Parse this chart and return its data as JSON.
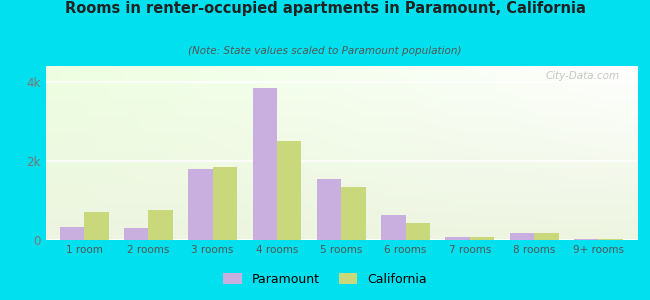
{
  "title": "Rooms in renter-occupied apartments in Paramount, California",
  "subtitle": "(Note: State values scaled to Paramount population)",
  "categories": [
    "1 room",
    "2 rooms",
    "3 rooms",
    "4 rooms",
    "5 rooms",
    "6 rooms",
    "7 rooms",
    "8 rooms",
    "9+ rooms"
  ],
  "paramount_values": [
    330,
    310,
    1800,
    3850,
    1550,
    620,
    80,
    170,
    30
  ],
  "california_values": [
    700,
    750,
    1850,
    2500,
    1350,
    430,
    80,
    170,
    30
  ],
  "paramount_color": "#c9aee0",
  "california_color": "#c8d87a",
  "background_outer": "#00e0ee",
  "ylim": [
    0,
    4400
  ],
  "yticks": [
    0,
    2000,
    4000
  ],
  "ytick_labels": [
    "0",
    "2k",
    "4k"
  ],
  "bar_width": 0.38,
  "legend_paramount": "Paramount",
  "legend_california": "California"
}
